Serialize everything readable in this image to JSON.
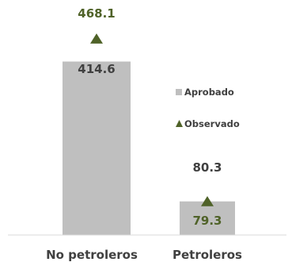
{
  "chart_data": {
    "type": "bar",
    "categories": [
      "No petroleros",
      "Petroleros"
    ],
    "series": [
      {
        "name": "Aprobado",
        "values": [
          414.6,
          80.3
        ],
        "color": "#BFBFBF",
        "mark": "bar"
      },
      {
        "name": "Observado",
        "values": [
          468.1,
          79.3
        ],
        "color": "#4F6228",
        "mark": "triangle"
      }
    ],
    "data_labels": {
      "Aprobado": [
        "414.6",
        "80.3"
      ],
      "Observado": [
        "468.1",
        "79.3"
      ]
    },
    "label_colors": {
      "Aprobado": "#404040",
      "Observado": "#4F6228"
    },
    "legend": {
      "position": "right",
      "entries": [
        "Aprobado",
        "Observado"
      ]
    },
    "title": "",
    "xlabel": "",
    "ylabel": "",
    "ylim": [
      0,
      500
    ],
    "grid": false
  }
}
